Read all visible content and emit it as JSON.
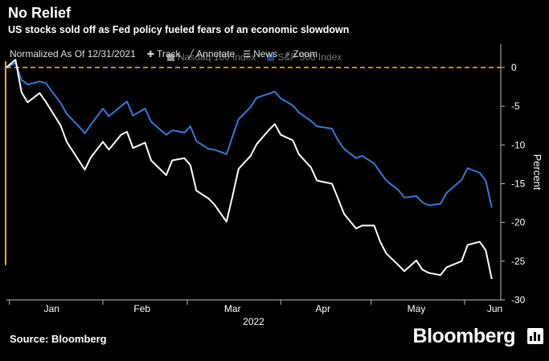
{
  "header": {
    "title": "No Relief",
    "subtitle": "US stocks sold off as Fed policy fueled fears of an economic slowdown"
  },
  "toolbar": {
    "normalized_label": "Normalized As Of 12/31/2021",
    "items": [
      {
        "icon": "track-icon",
        "label": "Track"
      },
      {
        "icon": "annotate-icon",
        "label": "Annotate"
      },
      {
        "icon": "news-icon",
        "label": "News"
      },
      {
        "icon": "zoom-icon",
        "label": "Zoom"
      }
    ]
  },
  "footer": {
    "source": "Source: Bloomberg",
    "brand": "Bloomberg"
  },
  "colors": {
    "nasdaq": "#ffffff",
    "sp500": "#2f7bd9",
    "zero_line": "#f5a623",
    "background": "#000000"
  },
  "chart_data": {
    "type": "line",
    "xlabel": "2022",
    "ylabel": "Percent",
    "x_range": [
      "2021-12-31",
      "2022-06-13"
    ],
    "x_tick_labels": [
      {
        "date": "2022-01-15",
        "label": "Jan"
      },
      {
        "date": "2022-02-14",
        "label": "Feb"
      },
      {
        "date": "2022-03-16",
        "label": "Mar"
      },
      {
        "date": "2022-04-15",
        "label": "Apr"
      },
      {
        "date": "2022-05-16",
        "label": "May"
      },
      {
        "date": "2022-06-11",
        "label": "Jun"
      }
    ],
    "ylim": [
      -30,
      3
    ],
    "y_ticks": [
      0,
      -5,
      -10,
      -15,
      -20,
      -25,
      -30
    ],
    "y_tick_labels": [
      "0",
      "-5",
      "-10",
      "-15",
      "-20",
      "-25",
      "-30"
    ],
    "y_axis_position": "right",
    "reference_line": 0,
    "legend_position": "top-left",
    "series": [
      {
        "name": "Nasdaq 100 Index",
        "color": "#ffffff",
        "points": [
          [
            "2021-12-31",
            0.0
          ],
          [
            "2022-01-03",
            1.0
          ],
          [
            "2022-01-05",
            -3.2
          ],
          [
            "2022-01-07",
            -4.5
          ],
          [
            "2022-01-11",
            -3.3
          ],
          [
            "2022-01-13",
            -4.4
          ],
          [
            "2022-01-18",
            -7.5
          ],
          [
            "2022-01-20",
            -9.6
          ],
          [
            "2022-01-24",
            -12.0
          ],
          [
            "2022-01-26",
            -13.2
          ],
          [
            "2022-01-28",
            -11.6
          ],
          [
            "2022-02-01",
            -9.6
          ],
          [
            "2022-02-03",
            -10.6
          ],
          [
            "2022-02-07",
            -8.7
          ],
          [
            "2022-02-09",
            -8.3
          ],
          [
            "2022-02-11",
            -10.4
          ],
          [
            "2022-02-15",
            -9.7
          ],
          [
            "2022-02-17",
            -12.0
          ],
          [
            "2022-02-22",
            -13.9
          ],
          [
            "2022-02-24",
            -12.0
          ],
          [
            "2022-02-28",
            -11.7
          ],
          [
            "2022-03-02",
            -12.6
          ],
          [
            "2022-03-04",
            -15.9
          ],
          [
            "2022-03-08",
            -16.9
          ],
          [
            "2022-03-10",
            -17.7
          ],
          [
            "2022-03-14",
            -19.9
          ],
          [
            "2022-03-16",
            -16.6
          ],
          [
            "2022-03-18",
            -13.1
          ],
          [
            "2022-03-22",
            -11.4
          ],
          [
            "2022-03-24",
            -9.9
          ],
          [
            "2022-03-28",
            -8.1
          ],
          [
            "2022-03-30",
            -7.3
          ],
          [
            "2022-04-01",
            -8.7
          ],
          [
            "2022-04-05",
            -9.4
          ],
          [
            "2022-04-07",
            -11.2
          ],
          [
            "2022-04-11",
            -12.9
          ],
          [
            "2022-04-13",
            -14.6
          ],
          [
            "2022-04-18",
            -15.0
          ],
          [
            "2022-04-20",
            -16.9
          ],
          [
            "2022-04-22",
            -18.9
          ],
          [
            "2022-04-26",
            -20.8
          ],
          [
            "2022-04-28",
            -20.4
          ],
          [
            "2022-05-02",
            -20.4
          ],
          [
            "2022-05-04",
            -22.5
          ],
          [
            "2022-05-06",
            -24.0
          ],
          [
            "2022-05-10",
            -25.5
          ],
          [
            "2022-05-12",
            -26.3
          ],
          [
            "2022-05-16",
            -24.9
          ],
          [
            "2022-05-18",
            -26.1
          ],
          [
            "2022-05-20",
            -26.5
          ],
          [
            "2022-05-24",
            -26.8
          ],
          [
            "2022-05-26",
            -25.8
          ],
          [
            "2022-05-31",
            -25.0
          ],
          [
            "2022-06-02",
            -22.9
          ],
          [
            "2022-06-06",
            -22.5
          ],
          [
            "2022-06-08",
            -23.6
          ],
          [
            "2022-06-10",
            -27.3
          ]
        ]
      },
      {
        "name": "S&P 500 Index",
        "color": "#2f7bd9",
        "points": [
          [
            "2021-12-31",
            0.0
          ],
          [
            "2022-01-03",
            0.6
          ],
          [
            "2022-01-05",
            -1.6
          ],
          [
            "2022-01-07",
            -2.2
          ],
          [
            "2022-01-11",
            -1.8
          ],
          [
            "2022-01-13",
            -2.0
          ],
          [
            "2022-01-18",
            -4.6
          ],
          [
            "2022-01-20",
            -6.0
          ],
          [
            "2022-01-24",
            -7.6
          ],
          [
            "2022-01-26",
            -8.5
          ],
          [
            "2022-01-28",
            -7.4
          ],
          [
            "2022-02-01",
            -5.3
          ],
          [
            "2022-02-03",
            -6.3
          ],
          [
            "2022-02-07",
            -5.0
          ],
          [
            "2022-02-09",
            -4.4
          ],
          [
            "2022-02-11",
            -6.2
          ],
          [
            "2022-02-15",
            -5.3
          ],
          [
            "2022-02-17",
            -7.0
          ],
          [
            "2022-02-22",
            -8.7
          ],
          [
            "2022-02-24",
            -8.1
          ],
          [
            "2022-02-28",
            -8.4
          ],
          [
            "2022-03-02",
            -7.6
          ],
          [
            "2022-03-04",
            -9.5
          ],
          [
            "2022-03-08",
            -10.5
          ],
          [
            "2022-03-10",
            -10.6
          ],
          [
            "2022-03-14",
            -11.2
          ],
          [
            "2022-03-16",
            -8.9
          ],
          [
            "2022-03-18",
            -6.7
          ],
          [
            "2022-03-22",
            -5.1
          ],
          [
            "2022-03-24",
            -3.9
          ],
          [
            "2022-03-28",
            -3.4
          ],
          [
            "2022-03-30",
            -3.1
          ],
          [
            "2022-04-01",
            -4.0
          ],
          [
            "2022-04-05",
            -4.9
          ],
          [
            "2022-04-07",
            -5.8
          ],
          [
            "2022-04-11",
            -6.9
          ],
          [
            "2022-04-13",
            -7.6
          ],
          [
            "2022-04-18",
            -7.9
          ],
          [
            "2022-04-20",
            -9.4
          ],
          [
            "2022-04-22",
            -10.5
          ],
          [
            "2022-04-26",
            -11.7
          ],
          [
            "2022-04-28",
            -11.4
          ],
          [
            "2022-05-02",
            -12.4
          ],
          [
            "2022-05-04",
            -13.5
          ],
          [
            "2022-05-06",
            -14.6
          ],
          [
            "2022-05-10",
            -15.8
          ],
          [
            "2022-05-12",
            -16.8
          ],
          [
            "2022-05-16",
            -16.6
          ],
          [
            "2022-05-18",
            -17.4
          ],
          [
            "2022-05-20",
            -17.8
          ],
          [
            "2022-05-24",
            -17.6
          ],
          [
            "2022-05-26",
            -16.2
          ],
          [
            "2022-05-31",
            -14.5
          ],
          [
            "2022-06-02",
            -13.0
          ],
          [
            "2022-06-06",
            -13.6
          ],
          [
            "2022-06-08",
            -14.6
          ],
          [
            "2022-06-10",
            -18.1
          ]
        ]
      }
    ]
  }
}
